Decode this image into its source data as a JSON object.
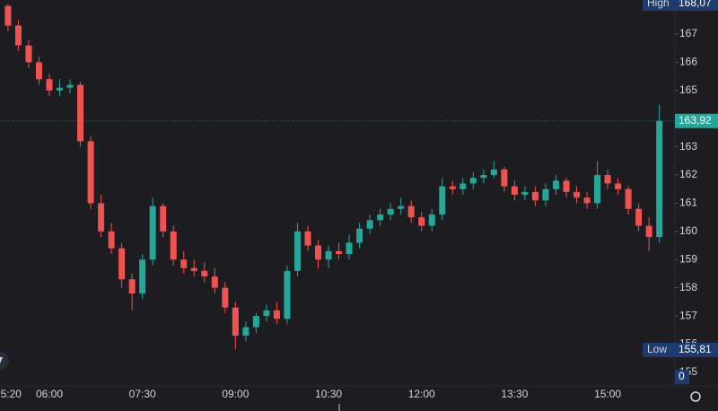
{
  "chart_data": {
    "type": "candlestick",
    "categories": [
      "05:20",
      null,
      null,
      null,
      "06:00",
      null,
      null,
      null,
      null,
      null,
      null,
      null,
      null,
      "07:30",
      null,
      null,
      null,
      null,
      null,
      null,
      null,
      null,
      "09:00",
      null,
      null,
      null,
      null,
      null,
      null,
      null,
      null,
      "10:30",
      null,
      null,
      null,
      null,
      null,
      null,
      null,
      null,
      "12:00",
      null,
      null,
      null,
      null,
      null,
      null,
      null,
      null,
      "13:30",
      null,
      null,
      null,
      null,
      null,
      null,
      null,
      null,
      "15:00",
      null,
      null,
      null,
      null,
      null
    ],
    "open": [
      168.0,
      167.3,
      166.6,
      166.0,
      165.4,
      165.0,
      165.1,
      165.2,
      163.2,
      161.0,
      160.0,
      159.4,
      158.3,
      157.8,
      159.0,
      160.9,
      160.0,
      159.0,
      158.7,
      158.6,
      158.4,
      158.0,
      157.3,
      156.3,
      156.6,
      157.0,
      157.2,
      156.9,
      158.6,
      160.0,
      159.5,
      159.0,
      159.3,
      159.2,
      159.6,
      160.1,
      160.4,
      160.6,
      160.8,
      160.9,
      160.5,
      160.2,
      160.6,
      161.6,
      161.5,
      161.7,
      161.9,
      162.0,
      162.2,
      161.6,
      161.3,
      161.4,
      161.1,
      161.5,
      161.8,
      161.4,
      161.2,
      161.0,
      162.0,
      161.7,
      161.5,
      160.8,
      160.2,
      159.8
    ],
    "high": [
      168.07,
      167.5,
      166.8,
      166.2,
      165.6,
      165.4,
      165.4,
      165.3,
      163.4,
      161.3,
      160.3,
      159.6,
      158.5,
      159.2,
      161.2,
      161.0,
      160.2,
      159.3,
      159.0,
      158.9,
      158.7,
      158.2,
      157.5,
      156.8,
      157.1,
      157.4,
      157.5,
      158.8,
      160.3,
      160.2,
      159.7,
      159.5,
      159.6,
      159.9,
      160.3,
      160.6,
      160.8,
      161.0,
      161.2,
      161.1,
      160.7,
      160.8,
      161.9,
      161.8,
      161.9,
      162.1,
      162.2,
      162.5,
      162.3,
      161.8,
      161.6,
      161.6,
      161.7,
      162.0,
      161.9,
      161.6,
      161.4,
      162.5,
      162.2,
      161.9,
      161.6,
      161.0,
      160.5,
      164.5
    ],
    "low": [
      167.1,
      166.4,
      165.8,
      165.2,
      164.8,
      164.8,
      164.9,
      163.0,
      160.8,
      159.8,
      159.2,
      158.0,
      157.2,
      157.6,
      158.8,
      159.8,
      158.8,
      158.5,
      158.4,
      158.2,
      157.8,
      157.1,
      155.81,
      156.1,
      156.4,
      156.8,
      156.7,
      156.7,
      158.4,
      159.3,
      158.7,
      158.7,
      159.0,
      159.0,
      159.4,
      159.9,
      160.2,
      160.4,
      160.6,
      160.3,
      160.0,
      160.0,
      160.4,
      161.3,
      161.3,
      161.5,
      161.7,
      161.9,
      161.4,
      161.1,
      161.1,
      160.9,
      160.9,
      161.3,
      161.2,
      161.0,
      160.8,
      160.8,
      161.5,
      161.3,
      160.6,
      160.0,
      159.3,
      159.6
    ],
    "close": [
      167.3,
      166.6,
      166.0,
      165.4,
      165.0,
      165.1,
      165.2,
      163.2,
      161.0,
      160.0,
      159.4,
      158.3,
      157.8,
      159.0,
      160.9,
      160.0,
      159.0,
      158.7,
      158.6,
      158.4,
      158.0,
      157.3,
      156.3,
      156.6,
      157.0,
      157.2,
      156.9,
      158.6,
      160.0,
      159.5,
      159.0,
      159.3,
      159.2,
      159.6,
      160.1,
      160.4,
      160.6,
      160.8,
      160.9,
      160.5,
      160.2,
      160.6,
      161.6,
      161.5,
      161.7,
      161.9,
      162.0,
      162.2,
      161.6,
      161.3,
      161.4,
      161.1,
      161.5,
      161.8,
      161.4,
      161.2,
      161.0,
      162.0,
      161.7,
      161.5,
      160.8,
      160.2,
      159.8,
      163.92
    ],
    "up_color": "#26a69a",
    "down_color": "#ef5350",
    "ylim": [
      154.52,
      168.21
    ],
    "yticks": [
      155,
      156,
      157,
      158,
      159,
      160,
      161,
      162,
      163,
      164,
      165,
      166,
      167
    ],
    "high_marker": {
      "label": "High",
      "value": 168.07,
      "value_label": "168,07"
    },
    "low_marker": {
      "label": "Low",
      "value": 155.81,
      "value_label": "155,81"
    },
    "last_price": {
      "value": 163.92,
      "value_label": "163,92"
    },
    "volume_last": 0
  }
}
